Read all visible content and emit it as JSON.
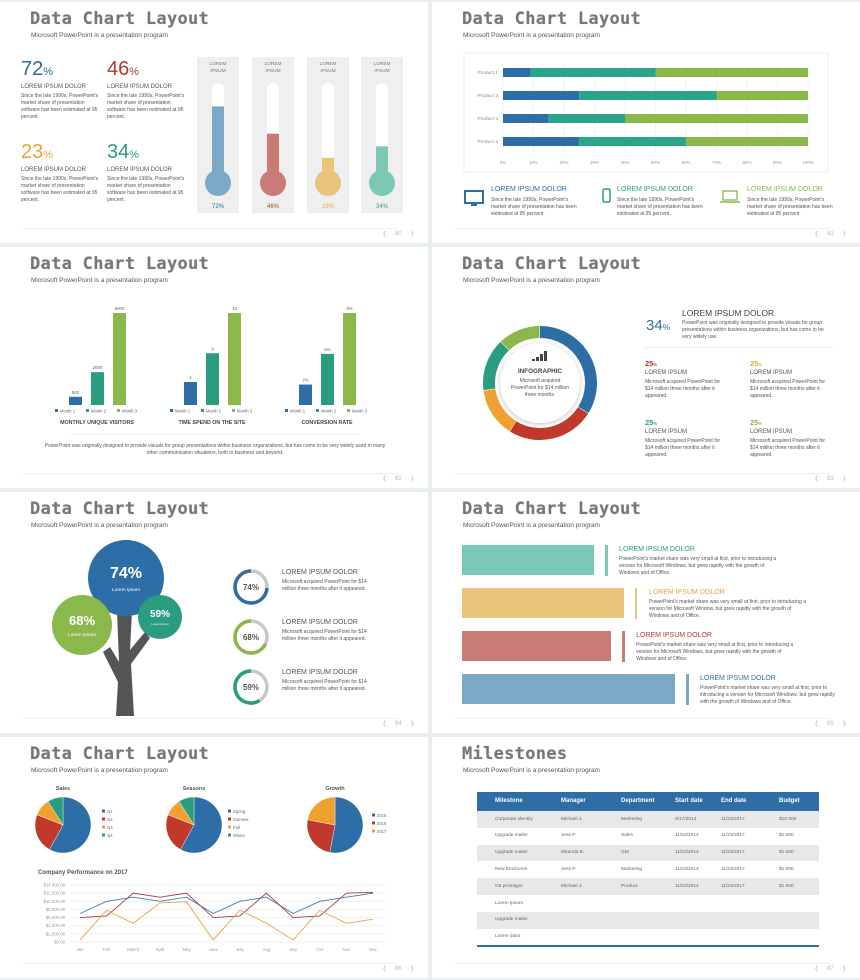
{
  "colors": {
    "blue": "#2e6ea6",
    "teal": "#2a9d80",
    "green": "#8ab84a",
    "red": "#b03a2e",
    "orange": "#e8a33a",
    "text": "#555555"
  },
  "slides": [
    {
      "title": "Data Chart Layout",
      "subtitle": "Microsoft PowerPoint is a presentation program",
      "page": "80",
      "stats": [
        {
          "value": "72",
          "unit": "%",
          "heading": "LOREM IPSUM DOLOR",
          "text": "Since the late 1990s, PowerPoint's market share of presentation software has been estimated at 95 percent.",
          "color": "#2d6a94"
        },
        {
          "value": "46",
          "unit": "%",
          "heading": "LOREM IPSUM DOLOR",
          "text": "Since the late 1990s, PowerPoint's market share of presentation software has been estimated at 95 percent.",
          "color": "#b03a2e"
        },
        {
          "value": "23",
          "unit": "%",
          "heading": "LOREM IPSUM DOLOR",
          "text": "Since the late 1990s, PowerPoint's market share of presentation software has been estimated at 95 percent.",
          "color": "#e8a33a"
        },
        {
          "value": "34",
          "unit": "%",
          "heading": "LOREM IPSUM DOLOR",
          "text": "Since the late 1990s, PowerPoint's market share of presentation software has been estimated at 95 percent.",
          "color": "#2a9d80"
        }
      ],
      "thermometers": [
        {
          "label": "LOREM IPSUM",
          "value": 72,
          "text": "72%",
          "fill": "#7aa9c8",
          "color": "#2d6a94"
        },
        {
          "label": "LOREM IPSUM",
          "value": 46,
          "text": "46%",
          "fill": "#c97b76",
          "color": "#b03a2e"
        },
        {
          "label": "LOREM IPSUM",
          "value": 23,
          "text": "23%",
          "fill": "#e8c57a",
          "color": "#e8a33a"
        },
        {
          "label": "LOREM IPSUM",
          "value": 34,
          "text": "34%",
          "fill": "#7cc8b5",
          "color": "#2a9d80"
        }
      ]
    },
    {
      "title": "Data Chart Layout",
      "subtitle": "Microsoft PowerPoint is a presentation program",
      "page": "81",
      "features": [
        {
          "icon": "monitor-icon",
          "heading": "LOREM IPSUM DOLOR",
          "text": "Since the late 1990s, PowerPoint's market share of presentation has been estimated at 95 percent.",
          "color": "#2e6ea6"
        },
        {
          "icon": "phone-icon",
          "heading": "LOREM IPSUM DOLOR",
          "text": "Since the late 1990s, PowerPoint's market share of presentation has been estimated at 95 percent.",
          "color": "#2a9d80"
        },
        {
          "icon": "laptop-icon",
          "heading": "LOREM IPSUM DOLOR",
          "text": "Since the late 1990s, PowerPoint's market share of presentation has been estimated at 95 percent.",
          "color": "#8ab84a"
        }
      ]
    },
    {
      "title": "Data Chart Layout",
      "subtitle": "Microsoft PowerPoint is a presentation program",
      "page": "82",
      "footer_text": "PowerPoint was originally designed to provide visuals for group presentations within business organizations, but has come to be very widely used in many other communication situations, both in business and beyond."
    },
    {
      "title": "Data Chart Layout",
      "subtitle": "Microsoft PowerPoint is a presentation program",
      "page": "83",
      "center": {
        "icon": "signal-bars-icon",
        "title": "INFOGRAPHIC",
        "text": "Microsoft acquired PowerPoint for $14 million three months."
      },
      "main": {
        "value": "34",
        "unit": "%",
        "heading": "LOREM IPSUM DOLOR",
        "text": "PowerPoint was originally designed to provide visuals for group presentations within business organizations, but has come to be very widely use."
      },
      "blocks": [
        {
          "value": "25",
          "unit": "%",
          "heading": "LOREM IPSUM",
          "text": "Microsoft acquired PowerPoint for $14 million three months after it appeared.",
          "color": "#b03a2e"
        },
        {
          "value": "25",
          "unit": "%",
          "heading": "LOREM IPSUM",
          "text": "Microsoft acquired PowerPoint for $14 million three months after it appeared.",
          "color": "#e8a33a"
        },
        {
          "value": "25",
          "unit": "%",
          "heading": "LOREM IPSUM",
          "text": "Microsoft acquired PowerPoint for $14 million three months after it appeared.",
          "color": "#2a9d80"
        },
        {
          "value": "25",
          "unit": "%",
          "heading": "LOREM IPSUM",
          "text": "Microsoft acquired PowerPoint for $14 million three months after it appeared.",
          "color": "#8ab84a"
        }
      ]
    },
    {
      "title": "Data Chart Layout",
      "subtitle": "Microsoft PowerPoint is a presentation program",
      "page": "84",
      "tree": [
        {
          "value": "74%",
          "label": "Lorem Ipsum",
          "color": "#2e6ea6"
        },
        {
          "value": "68%",
          "label": "Lorem Ipsum",
          "color": "#8ab84a"
        },
        {
          "value": "59%",
          "label": "Lorem Ipsum",
          "color": "#2a9d80"
        }
      ],
      "rings": [
        {
          "value": 74,
          "text": "74%",
          "heading": "LOREM IPSUM DOLOR",
          "desc": "Microsoft acquired PowerPoint for $14 million three months after it appeared.",
          "color": "#2e6ea6"
        },
        {
          "value": 68,
          "text": "68%",
          "heading": "LOREM IPSUM DOLOR",
          "desc": "Microsoft acquired PowerPoint for $14 million three months after it appeared.",
          "color": "#8ab84a"
        },
        {
          "value": 59,
          "text": "59%",
          "heading": "LOREM IPSUM DOLOR",
          "desc": "Microsoft acquired PowerPoint for $14 million three months after it appeared.",
          "color": "#2a9d80"
        }
      ]
    },
    {
      "title": "Data Chart Layout",
      "subtitle": "Microsoft PowerPoint is a presentation program",
      "page": "85",
      "bars": [
        {
          "level": 0.62,
          "heading": "LOREM IPSUM DOLOR",
          "text": "PowerPoint's market share was very small at first, prior to introducing a version for Microsoft Windows, but grew rapidly with the growth of Windows and of Office.",
          "fill": "#7cc9b8",
          "color": "#2a9d80"
        },
        {
          "level": 0.76,
          "heading": "LOREM IPSUM DOLOR",
          "text": "PowerPoint's market share was very small at first, prior to introducing a version for Microsoft Window, but grew rapidly with the growth of Windows and of Office.",
          "fill": "#eac37c",
          "color": "#e8a33a"
        },
        {
          "level": 0.7,
          "heading": "LOREM IPSUM DOLOR",
          "text": "PowerPoint's market share was very small at first, prior to introducing a version for Microsoft Windows, but grew rapidly with the growth of Windows and of Office.",
          "fill": "#c97b76",
          "color": "#b03a2e"
        },
        {
          "level": 1.0,
          "heading": "LOREM IPSUM DOLOR",
          "text": "PowerPoint's market share was very small at first, prior to introducing a version for Microsoft Windows, but grew rapidly with the growth of Windows and of Office.",
          "fill": "#7aa9c6",
          "color": "#2e6ea6"
        }
      ]
    },
    {
      "title": "Data Chart Layout",
      "subtitle": "Microsoft PowerPoint is a presentation program",
      "page": "86"
    },
    {
      "title": "Milestones",
      "subtitle": "Microsoft PowerPoint is a presentation program",
      "page": "87",
      "table": {
        "headers": [
          "Milestone",
          "Manager",
          "Department",
          "Start date",
          "End date",
          "Budget"
        ],
        "rows": [
          [
            "Corporate identity",
            "Michael J.",
            "Marketing",
            "9/17/2014",
            "11/23/2017",
            "$10 000"
          ],
          [
            "Upgrade mailer",
            "Jess P.",
            "Sales",
            "11/23/2014",
            "11/23/2017",
            "$1 000"
          ],
          [
            "Upgrade mailer",
            "Miranda B.",
            "GM",
            "11/23/2014",
            "11/23/2017",
            "$1 000"
          ],
          [
            "New brochures",
            "Jess P.",
            "Marketing",
            "11/23/2014",
            "11/23/2017",
            "$1 000"
          ],
          [
            "G6 prototype",
            "Michael J.",
            "Product",
            "11/23/2014",
            "11/23/2017",
            "$1 000"
          ],
          [
            "Lorem Ipsum",
            "",
            "",
            "",
            "",
            ""
          ],
          [
            "Upgrade mailer",
            "",
            "",
            "",
            "",
            ""
          ],
          [
            "Lorem dolor",
            "",
            "",
            "",
            "",
            ""
          ]
        ]
      }
    }
  ],
  "chart_data": [
    {
      "type": "bar",
      "orientation": "horizontal",
      "stacked": true,
      "categories": [
        "Product 1",
        "Product 2",
        "Product 3",
        "Product 4"
      ],
      "series": [
        {
          "values": [
            9,
            25,
            15,
            25
          ],
          "color": "#2e6ea6"
        },
        {
          "values": [
            41,
            45,
            25,
            35
          ],
          "color": "#2aa58a"
        },
        {
          "values": [
            50,
            30,
            60,
            40
          ],
          "color": "#8ab84a"
        }
      ],
      "xlim": [
        0,
        100
      ],
      "xticks": [
        "0%",
        "10%",
        "20%",
        "30%",
        "40%",
        "50%",
        "60%",
        "70%",
        "80%",
        "90%",
        "100%"
      ],
      "grid": true
    },
    {
      "type": "bar",
      "title": "MONTHLY UNIQUE VISITORS",
      "categories": [
        "Month 1",
        "Month 2",
        "Month 3"
      ],
      "values": [
        500,
        2000,
        5600
      ],
      "labels": [
        "500",
        "2000",
        "5600"
      ],
      "legend": "bottom"
    },
    {
      "type": "bar",
      "title": "TIME SPEND ON THE SITE",
      "categories": [
        "Month 1",
        "Month 2",
        "Month 3"
      ],
      "values": [
        4,
        9,
        16
      ],
      "labels": [
        "4",
        "9",
        "16"
      ],
      "legend": "bottom"
    },
    {
      "type": "bar",
      "title": "CONVERSION RATE",
      "categories": [
        "Month 1",
        "Month 2",
        "Month 3"
      ],
      "values": [
        2,
        5,
        9
      ],
      "labels": [
        "2%",
        "5%",
        "9%"
      ],
      "legend": "bottom"
    },
    {
      "type": "pie",
      "style": "donut",
      "values": [
        34,
        25,
        14,
        15,
        12
      ],
      "colors": [
        "#2e6ea6",
        "#c0392b",
        "#f0a030",
        "#2a9d80",
        "#8ab84a"
      ]
    },
    {
      "type": "pie",
      "title": "Sales",
      "categories": [
        "Q1",
        "Q2",
        "Q3",
        "Q4"
      ],
      "values": [
        58,
        23,
        10,
        9
      ],
      "legend": "right"
    },
    {
      "type": "pie",
      "title": "Seasons",
      "categories": [
        "Spring",
        "Summer",
        "Fall",
        "Winter"
      ],
      "values": [
        58,
        23,
        10,
        9
      ],
      "legend": "right"
    },
    {
      "type": "pie",
      "title": "Growth",
      "categories": [
        "2015",
        "2016",
        "2017"
      ],
      "values": [
        53,
        25,
        22
      ],
      "legend": "right"
    },
    {
      "type": "line",
      "title": "Company Performance on 2017",
      "x": [
        "Jan",
        "Feb",
        "March",
        "April",
        "May",
        "June",
        "July",
        "Aug",
        "Sep",
        "Oct",
        "Nov",
        "Dec"
      ],
      "series": [
        {
          "values": [
            7000,
            10000,
            11000,
            10000,
            11000,
            7000,
            10000,
            11000,
            7000,
            10000,
            11000,
            12000
          ],
          "color": "#3c7fb0"
        },
        {
          "values": [
            6000,
            6400,
            12000,
            11000,
            12000,
            6000,
            6400,
            12000,
            6000,
            6400,
            12000,
            12200
          ],
          "color": "#b03a3a"
        },
        {
          "values": [
            500,
            7800,
            4600,
            9600,
            9900,
            500,
            7800,
            4600,
            500,
            7800,
            4600,
            5600
          ],
          "color": "#e8a33a"
        }
      ],
      "ylim": [
        0,
        14000
      ],
      "yticks": [
        "$0.00",
        "$2,000.00",
        "$4,000.00",
        "$6,000.00",
        "$8,000.00",
        "$10,000.00",
        "$12,000.00",
        "$14,000.00"
      ],
      "grid": true
    }
  ]
}
